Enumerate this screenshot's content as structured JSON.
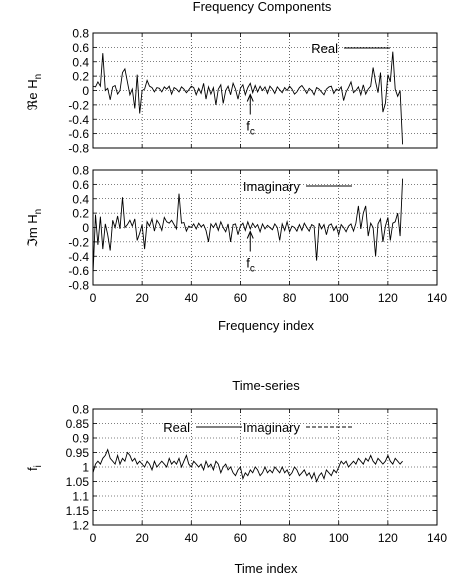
{
  "chart_data": [
    {
      "type": "line",
      "title": "Frequency Components",
      "xlabel": "",
      "ylabel": "ℜe H",
      "ylabel_sub": "n",
      "xlim": [
        0,
        140
      ],
      "ylim": [
        -0.8,
        0.8
      ],
      "yticks": [
        "0.8",
        "0.6",
        "0.4",
        "0.2",
        "0",
        "-0.2",
        "-0.4",
        "-0.6",
        "-0.8"
      ],
      "xticks": [],
      "grid": true,
      "legend": "top-right",
      "annotation": {
        "text": "f",
        "sub": "c",
        "x": 64
      },
      "series": [
        {
          "name": "Real",
          "y": [
            0.06,
            0.05,
            0.12,
            0.06,
            0.52,
            0.0,
            0.03,
            -0.13,
            0.05,
            0.07,
            -0.05,
            0.0,
            0.25,
            0.3,
            0.12,
            -0.06,
            0.02,
            -0.25,
            0.22,
            -0.32,
            0.0,
            0.02,
            0.14,
            0.06,
            0.04,
            -0.02,
            0.04,
            0.03,
            -0.02,
            0.05,
            0.02,
            0.06,
            -0.05,
            0.04,
            0.02,
            -0.02,
            0.05,
            0.02,
            -0.03,
            0.01,
            0.06,
            0.04,
            -0.06,
            0.03,
            -0.04,
            0.1,
            -0.12,
            0.05,
            -0.05,
            0.04,
            -0.2,
            0.02,
            0.08,
            -0.18,
            0.0,
            0.06,
            -0.06,
            0.1,
            0.02,
            -0.12,
            0.03,
            0.08,
            -0.06,
            0.04,
            0.1,
            -0.03,
            0.07,
            -0.02,
            0.06,
            0.0,
            0.05,
            -0.04,
            0.06,
            0.02,
            -0.04,
            0.05,
            0.01,
            -0.03,
            0.04,
            0.0,
            0.06,
            0.02,
            -0.05,
            -0.02,
            0.04,
            0.07,
            0.02,
            -0.04,
            0.03,
            0.0,
            -0.06,
            0.04,
            0.02,
            -0.02,
            -0.06,
            0.02,
            0.05,
            0.06,
            -0.04,
            0.02,
            0.0,
            0.05,
            -0.14,
            -0.02,
            0.04,
            0.12,
            -0.03,
            0.0,
            0.05,
            -0.06,
            0.08,
            -0.05,
            0.02,
            0.06,
            0.32,
            0.12,
            -0.03,
            0.25,
            -0.3,
            -0.18,
            0.22,
            0.12,
            0.54,
            0.02,
            -0.08,
            0.0,
            -0.75
          ]
        }
      ]
    },
    {
      "type": "line",
      "title": "",
      "xlabel": "Frequency index",
      "ylabel": "ℑm H",
      "ylabel_sub": "n",
      "xlim": [
        0,
        140
      ],
      "ylim": [
        -0.8,
        0.8
      ],
      "yticks": [
        "0.8",
        "0.6",
        "0.4",
        "0.2",
        "0",
        "-0.2",
        "-0.4",
        "-0.6",
        "-0.8"
      ],
      "xticks": [
        "0",
        "20",
        "40",
        "60",
        "80",
        "100",
        "120",
        "140"
      ],
      "grid": true,
      "legend": "top-right",
      "annotation": {
        "text": "f",
        "sub": "c",
        "x": 64
      },
      "series": [
        {
          "name": "Imaginary",
          "y": [
            -0.65,
            0.18,
            -0.24,
            0.15,
            -0.3,
            0.05,
            -0.1,
            -0.32,
            0.1,
            0.0,
            0.16,
            -0.02,
            0.42,
            0.0,
            0.04,
            0.1,
            0.02,
            0.12,
            -0.18,
            -0.08,
            0.04,
            -0.3,
            0.08,
            0.02,
            0.12,
            -0.05,
            0.1,
            0.05,
            -0.04,
            0.14,
            0.08,
            0.06,
            0.1,
            0.04,
            -0.02,
            0.47,
            0.06,
            0.07,
            -0.05,
            0.02,
            0.0,
            0.05,
            -0.02,
            0.06,
            0.01,
            0.04,
            -0.04,
            -0.2,
            0.05,
            0.0,
            0.06,
            -0.04,
            0.08,
            0.0,
            -0.06,
            0.05,
            -0.2,
            0.04,
            0.05,
            -0.1,
            0.02,
            0.06,
            -0.04,
            0.08,
            -0.02,
            0.06,
            0.0,
            0.04,
            -0.06,
            0.05,
            -0.02,
            0.03,
            0.0,
            -0.03,
            0.05,
            0.0,
            -0.18,
            0.05,
            -0.04,
            0.08,
            -0.06,
            0.02,
            0.0,
            -0.05,
            0.04,
            -0.04,
            0.06,
            0.0,
            -0.05,
            0.04,
            0.02,
            -0.46,
            0.06,
            -0.02,
            0.04,
            -0.1,
            0.03,
            0.05,
            -0.04,
            0.02,
            -0.1,
            0.04,
            0.0,
            -0.06,
            0.02,
            0.05,
            -0.05,
            0.06,
            0.3,
            -0.02,
            0.2,
            0.3,
            -0.12,
            0.06,
            0.0,
            -0.4,
            0.05,
            0.12,
            -0.2,
            0.02,
            0.14,
            -0.18,
            0.06,
            0.08,
            0.2,
            -0.12,
            0.68
          ]
        }
      ]
    },
    {
      "type": "line",
      "title": "Time-series",
      "xlabel": "Time index",
      "ylabel": "f",
      "ylabel_sub": "i",
      "xlim": [
        0,
        140
      ],
      "ylim": [
        1.2,
        0.8
      ],
      "yticks": [
        "0.8",
        "0.85",
        "0.9",
        "0.95",
        "1",
        "1.05",
        "1.1",
        "1.15",
        "1.2"
      ],
      "xticks": [
        "0",
        "20",
        "40",
        "60",
        "80",
        "100",
        "120",
        "140"
      ],
      "grid": true,
      "legend": "top",
      "series": [
        {
          "name": "Real",
          "y": [
            1.02,
            0.99,
            0.98,
            0.99,
            0.97,
            0.96,
            0.94,
            0.97,
            0.98,
            0.99,
            0.96,
            0.99,
            0.97,
            0.98,
            0.95,
            0.96,
            0.98,
            0.97,
            0.99,
            0.98,
            0.99,
            1.0,
            0.98,
            0.99,
            1.01,
            0.98,
            1.0,
            0.99,
            0.98,
            0.99,
            1.0,
            0.97,
            0.99,
            0.98,
            0.99,
            0.97,
            1.0,
            0.98,
            0.96,
            0.99,
            1.0,
            0.98,
            0.99,
            1.0,
            0.99,
            1.01,
            0.98,
            1.0,
            0.99,
            1.01,
            0.98,
            0.99,
            1.02,
            1.0,
            0.99,
            1.01,
            1.0,
            1.02,
            1.03,
            1.01,
            1.0,
            1.04,
            1.02,
            1.03,
            1.01,
            1.02,
            1.0,
            1.01,
            1.03,
            1.02,
            1.0,
            1.02,
            1.01,
            1.02,
            1.0,
            1.01,
            1.02,
            1.0,
            1.02,
            1.01,
            1.03,
            1.02,
            1.0,
            1.01,
            1.03,
            1.02,
            1.01,
            1.03,
            1.02,
            1.04,
            1.02,
            1.05,
            1.03,
            1.02,
            1.04,
            1.01,
            1.02,
            1.03,
            1.01,
            1.02,
            1.0,
            0.98,
            0.99,
            0.98,
            1.0,
            0.99,
            0.98,
            0.99,
            0.97,
            0.98,
            0.99,
            0.97,
            0.98,
            0.96,
            0.98,
            0.99,
            0.97,
            0.98,
            0.99,
            0.98,
            0.96,
            0.98,
            0.99,
            0.97,
            0.98,
            0.99,
            0.98
          ]
        },
        {
          "name": "Imaginary",
          "y": []
        }
      ]
    }
  ]
}
